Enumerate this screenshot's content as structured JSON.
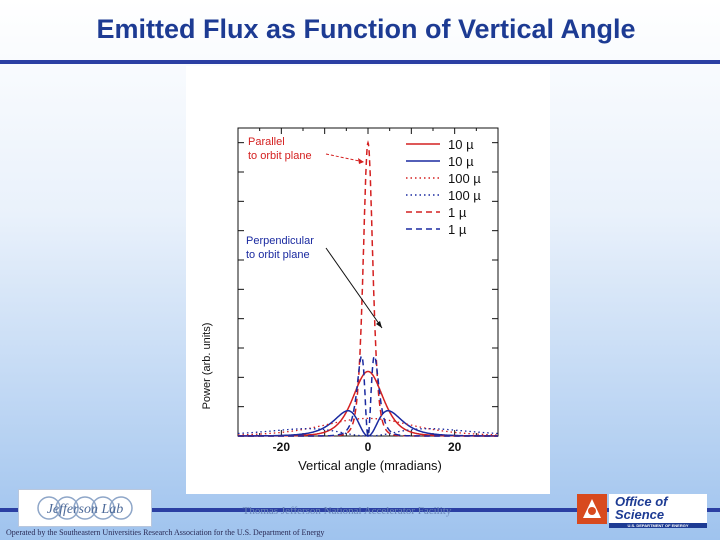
{
  "slide": {
    "title": "Emitted Flux as Function of Vertical Angle",
    "facility": "Thomas Jefferson National Accelerator Facility",
    "operated_by": "Operated by the Southeastern Universities Research Association for the U.S. Department of Energy",
    "logo_left_text": "Jefferson Lab",
    "logo_right_line1": "Office of",
    "logo_right_line2": "Science",
    "logo_right_line3": "U.S. DEPARTMENT OF ENERGY"
  },
  "colors": {
    "accent": "#2b3fa3",
    "title": "#1d3b93",
    "red": "#d42020",
    "blue": "#1a2aa0",
    "gold": "#e0b000"
  },
  "chart_data": {
    "type": "line",
    "xlabel": "Vertical angle (mradians)",
    "ylabel": "Power (arb. units)",
    "xlim": [
      -30,
      30
    ],
    "ylim": [
      0,
      1.05
    ],
    "xticks": [
      -20,
      0,
      20
    ],
    "grid": false,
    "legend_position": "top-right",
    "annotations": [
      {
        "text": "Parallel to orbit plane",
        "line1": "Parallel",
        "line2": "to orbit plane",
        "color": "#d42020"
      },
      {
        "text": "Perpendicular to orbit plane",
        "line1": "Perpendicular",
        "line2": "to orbit plane",
        "color": "#1a2aa0"
      }
    ],
    "series": [
      {
        "name": "10 µ",
        "color": "#d42020",
        "dash": "solid",
        "kind": "par",
        "width": 5,
        "peak": 0.22
      },
      {
        "name": "10 µ",
        "color": "#1a2aa0",
        "dash": "solid",
        "kind": "perp",
        "width": 5,
        "peak": 0.12
      },
      {
        "name": "100 µ",
        "color": "#d42020",
        "dash": "dotted",
        "kind": "par",
        "width": 15,
        "peak": 0.06
      },
      {
        "name": "100 µ",
        "color": "#1a2aa0",
        "dash": "dotted",
        "kind": "perp",
        "width": 15,
        "peak": 0.035
      },
      {
        "name": "1 µ",
        "color": "#d42020",
        "dash": "dashed",
        "kind": "par",
        "width": 1.6,
        "peak": 1.0
      },
      {
        "name": "1 µ",
        "color": "#1a2aa0",
        "dash": "dashed",
        "kind": "perp",
        "width": 1.6,
        "peak": 0.38
      }
    ]
  }
}
